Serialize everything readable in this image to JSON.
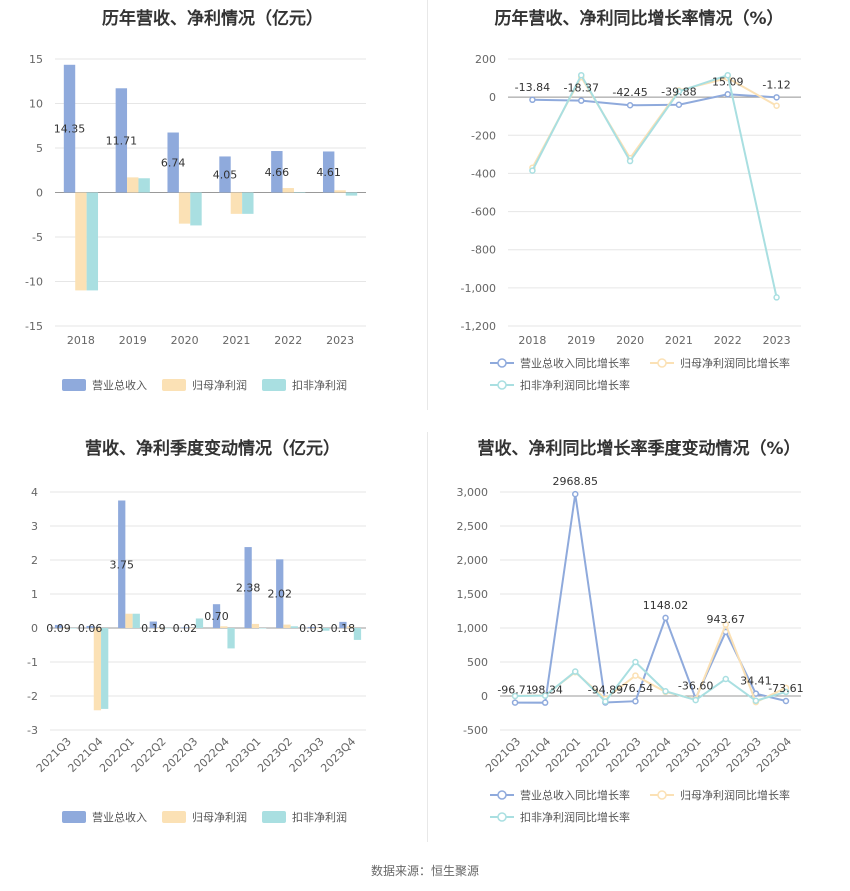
{
  "source_text": "数据来源：恒生聚源",
  "chart_data": [
    {
      "type": "bar",
      "title": "历年营收、净利情况（亿元）",
      "categories": [
        "2018",
        "2019",
        "2020",
        "2021",
        "2022",
        "2023"
      ],
      "ylim": [
        -15,
        15
      ],
      "yticks": [
        15,
        10,
        5,
        0,
        -5,
        -10,
        -15
      ],
      "series": [
        {
          "name": "营业总收入",
          "color": "#8faadc",
          "values": [
            14.35,
            11.71,
            6.74,
            4.05,
            4.66,
            4.61
          ],
          "labels": [
            "14.35",
            "11.71",
            "6.74",
            "4.05",
            "4.66",
            "4.61"
          ]
        },
        {
          "name": "归母净利润",
          "color": "#fbe1b5",
          "values": [
            -11.0,
            1.7,
            -3.5,
            -2.4,
            0.5,
            0.25
          ]
        },
        {
          "name": "扣非净利润",
          "color": "#a9dfe1",
          "values": [
            -11.0,
            1.6,
            -3.7,
            -2.4,
            0.05,
            -0.35
          ]
        }
      ],
      "legend_position": "bottom"
    },
    {
      "type": "line",
      "title": "历年营收、净利同比增长率情况（%）",
      "categories": [
        "2018",
        "2019",
        "2020",
        "2021",
        "2022",
        "2023"
      ],
      "ylim": [
        -1200,
        200
      ],
      "yticks": [
        200,
        0,
        -200,
        -400,
        -600,
        -800,
        -1000,
        -1200
      ],
      "ytick_labels": [
        "200",
        "0",
        "-200",
        "-400",
        "-600",
        "-800",
        "-1,000",
        "-1,200"
      ],
      "series": [
        {
          "name": "营业总收入同比增长率",
          "color": "#8faadc",
          "values": [
            -13.84,
            -18.37,
            -42.45,
            -39.88,
            15.09,
            -1.12
          ],
          "labels": [
            "-13.84",
            "-18.37",
            "-42.45",
            "-39.88",
            "15.09",
            "-1.12"
          ]
        },
        {
          "name": "归母净利润同比增长率",
          "color": "#fbe1b5",
          "values": [
            -370,
            105,
            -320,
            35,
            100,
            -45
          ]
        },
        {
          "name": "扣非净利润同比增长率",
          "color": "#a9dfe1",
          "values": [
            -385,
            115,
            -335,
            30,
            115,
            -1050
          ]
        }
      ],
      "legend_position": "bottom"
    },
    {
      "type": "bar",
      "title": "营收、净利季度变动情况（亿元）",
      "categories": [
        "2021Q3",
        "2021Q4",
        "2022Q1",
        "2022Q2",
        "2022Q3",
        "2022Q4",
        "2023Q1",
        "2023Q2",
        "2023Q3",
        "2023Q4"
      ],
      "ylim": [
        -3,
        4
      ],
      "yticks": [
        4,
        3,
        2,
        1,
        0,
        -1,
        -2,
        -3
      ],
      "series": [
        {
          "name": "营业总收入",
          "color": "#8faadc",
          "values": [
            0.09,
            0.06,
            3.75,
            0.19,
            0.02,
            0.7,
            2.38,
            2.02,
            0.03,
            0.18
          ],
          "labels": [
            "0.09",
            "0.06",
            "3.75",
            "0.19",
            "0.02",
            "0.70",
            "2.38",
            "2.02",
            "0.03",
            "0.18"
          ]
        },
        {
          "name": "归母净利润",
          "color": "#fbe1b5",
          "values": [
            0.0,
            -2.42,
            0.42,
            0.0,
            0.0,
            0.05,
            0.12,
            0.1,
            0.0,
            0.05
          ]
        },
        {
          "name": "扣非净利润",
          "color": "#a9dfe1",
          "values": [
            0.0,
            -2.38,
            0.42,
            0.0,
            0.28,
            -0.6,
            0.0,
            0.05,
            -0.08,
            -0.35
          ]
        }
      ],
      "legend_position": "bottom"
    },
    {
      "type": "line",
      "title": "营收、净利同比增长率季度变动情况（%）",
      "categories": [
        "2021Q3",
        "2021Q4",
        "2022Q1",
        "2022Q2",
        "2022Q3",
        "2022Q4",
        "2023Q1",
        "2023Q2",
        "2023Q3",
        "2023Q4"
      ],
      "ylim": [
        -500,
        3000
      ],
      "yticks": [
        3000,
        2500,
        2000,
        1500,
        1000,
        500,
        0,
        -500
      ],
      "ytick_labels": [
        "3,000",
        "2,500",
        "2,000",
        "1,500",
        "1,000",
        "500",
        "0",
        "-500"
      ],
      "series": [
        {
          "name": "营业总收入同比增长率",
          "color": "#8faadc",
          "values": [
            -96.71,
            -98.34,
            2968.85,
            -94.89,
            -76.54,
            1148.02,
            -36.6,
            943.67,
            34.41,
            -73.61
          ],
          "labels": [
            "-96.71",
            "-98.34",
            "2968.85",
            "-94.89",
            "-76.54",
            "1148.02",
            "-36.60",
            "943.67",
            "34.41",
            "-73.61"
          ]
        },
        {
          "name": "归母净利润同比增长率",
          "color": "#fbe1b5",
          "values": [
            0,
            10,
            350,
            -40,
            300,
            60,
            -50,
            1050,
            -90,
            120
          ]
        },
        {
          "name": "扣非净利润同比增长率",
          "color": "#a9dfe1",
          "values": [
            0,
            5,
            360,
            -80,
            500,
            70,
            -60,
            250,
            -70,
            60
          ]
        }
      ],
      "legend_position": "bottom"
    }
  ]
}
